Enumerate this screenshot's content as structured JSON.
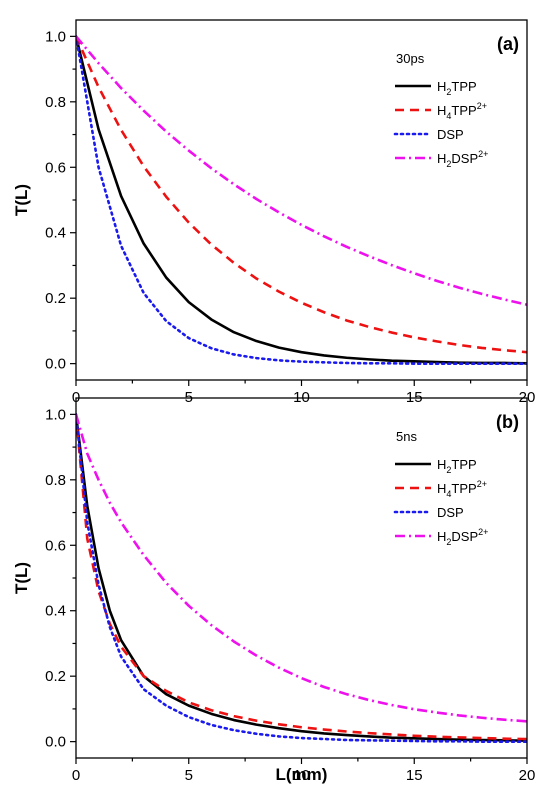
{
  "chart_data": [
    {
      "type": "line",
      "panel_label": "(a)",
      "legend_title": "30ps",
      "ylabel": "T(L)",
      "xlabel": "",
      "xlim": [
        0,
        20
      ],
      "ylim": [
        -0.05,
        1.05
      ],
      "x_ticks": [
        0,
        5,
        10,
        15,
        20
      ],
      "y_ticks": [
        0.0,
        0.2,
        0.4,
        0.6,
        0.8,
        1.0
      ],
      "x_tick_labels": [
        "0",
        "5",
        "10",
        "15",
        "20"
      ],
      "y_tick_labels": [
        "0.0",
        "0.2",
        "0.4",
        "0.6",
        "0.8",
        "1.0"
      ],
      "grid": false,
      "legend_position": "top-right",
      "x": [
        0,
        1,
        2,
        3,
        4,
        5,
        6,
        7,
        8,
        9,
        10,
        11,
        12,
        13,
        14,
        15,
        16,
        17,
        18,
        19,
        20
      ],
      "series": [
        {
          "name": "H2TPP",
          "name_base": "H",
          "name_sub": "2",
          "name_mid": "TPP",
          "name_sup": "",
          "color": "#000000",
          "dash": "solid",
          "values": [
            1.0,
            0.716,
            0.512,
            0.367,
            0.263,
            0.188,
            0.135,
            0.096,
            0.069,
            0.049,
            0.035,
            0.025,
            0.018,
            0.013,
            0.009,
            0.007,
            0.005,
            0.003,
            0.002,
            0.002,
            0.001
          ]
        },
        {
          "name": "H4TPP2+",
          "name_base": "H",
          "name_sub": "4",
          "name_mid": "TPP",
          "name_sup": "2+",
          "color": "#ee1111",
          "dash": "dash",
          "values": [
            1.0,
            0.845,
            0.714,
            0.603,
            0.51,
            0.431,
            0.364,
            0.308,
            0.26,
            0.22,
            0.186,
            0.157,
            0.132,
            0.112,
            0.095,
            0.08,
            0.068,
            0.057,
            0.048,
            0.041,
            0.035
          ]
        },
        {
          "name": "DSP",
          "name_base": "DSP",
          "name_sub": "",
          "name_mid": "",
          "name_sup": "",
          "color": "#1a1aee",
          "dash": "dot",
          "values": [
            1.0,
            0.6,
            0.36,
            0.216,
            0.13,
            0.078,
            0.047,
            0.028,
            0.017,
            0.01,
            0.006,
            0.004,
            0.002,
            0.001,
            0.001,
            0.0,
            0.0,
            0.0,
            0.0,
            0.0,
            0.0
          ]
        },
        {
          "name": "H2DSP2+",
          "name_base": "H",
          "name_sub": "2",
          "name_mid": "DSP",
          "name_sup": "2+",
          "color": "#ee11ee",
          "dash": "dashdot",
          "values": [
            1.0,
            0.918,
            0.842,
            0.773,
            0.709,
            0.651,
            0.597,
            0.548,
            0.503,
            0.462,
            0.424,
            0.389,
            0.357,
            0.328,
            0.301,
            0.276,
            0.253,
            0.232,
            0.213,
            0.196,
            0.18
          ]
        }
      ]
    },
    {
      "type": "line",
      "panel_label": "(b)",
      "legend_title": "5ns",
      "ylabel": "T(L)",
      "xlabel": "L(mm)",
      "xlim": [
        0,
        20
      ],
      "ylim": [
        -0.05,
        1.05
      ],
      "x_ticks": [
        0,
        5,
        10,
        15,
        20
      ],
      "y_ticks": [
        0.0,
        0.2,
        0.4,
        0.6,
        0.8,
        1.0
      ],
      "x_tick_labels": [
        "0",
        "5",
        "10",
        "15",
        "20"
      ],
      "y_tick_labels": [
        "0.0",
        "0.2",
        "0.4",
        "0.6",
        "0.8",
        "1.0"
      ],
      "grid": false,
      "legend_position": "top-right",
      "x": [
        0,
        0.5,
        1,
        1.5,
        2,
        3,
        4,
        5,
        6,
        7,
        8,
        9,
        10,
        11,
        12,
        13,
        14,
        15,
        16,
        17,
        18,
        19,
        20
      ],
      "series": [
        {
          "name": "H2TPP",
          "name_base": "H",
          "name_sub": "2",
          "name_mid": "TPP",
          "name_sup": "",
          "color": "#000000",
          "dash": "solid",
          "values": [
            1.0,
            0.72,
            0.53,
            0.4,
            0.31,
            0.2,
            0.145,
            0.11,
            0.085,
            0.066,
            0.052,
            0.041,
            0.032,
            0.025,
            0.02,
            0.016,
            0.012,
            0.01,
            0.008,
            0.006,
            0.005,
            0.004,
            0.003
          ]
        },
        {
          "name": "H4TPP2+",
          "name_base": "H",
          "name_sub": "4",
          "name_mid": "TPP",
          "name_sup": "2+",
          "color": "#ee1111",
          "dash": "dash",
          "values": [
            1.0,
            0.62,
            0.46,
            0.36,
            0.29,
            0.2,
            0.155,
            0.12,
            0.096,
            0.078,
            0.064,
            0.053,
            0.044,
            0.037,
            0.031,
            0.026,
            0.022,
            0.018,
            0.015,
            0.013,
            0.011,
            0.009,
            0.008
          ]
        },
        {
          "name": "DSP",
          "name_base": "DSP",
          "name_sub": "",
          "name_mid": "",
          "name_sup": "",
          "color": "#1a1aee",
          "dash": "dot",
          "values": [
            1.0,
            0.67,
            0.48,
            0.35,
            0.26,
            0.16,
            0.11,
            0.075,
            0.051,
            0.035,
            0.024,
            0.016,
            0.011,
            0.008,
            0.005,
            0.004,
            0.003,
            0.002,
            0.001,
            0.001,
            0.0,
            0.0,
            0.0
          ]
        },
        {
          "name": "H2DSP2+",
          "name_base": "H",
          "name_sub": "2",
          "name_mid": "DSP",
          "name_sup": "2+",
          "color": "#ee11ee",
          "dash": "dashdot",
          "values": [
            1.0,
            0.88,
            0.8,
            0.73,
            0.67,
            0.57,
            0.485,
            0.415,
            0.356,
            0.306,
            0.263,
            0.226,
            0.194,
            0.167,
            0.145,
            0.127,
            0.112,
            0.099,
            0.089,
            0.08,
            0.073,
            0.067,
            0.062
          ]
        }
      ]
    }
  ]
}
